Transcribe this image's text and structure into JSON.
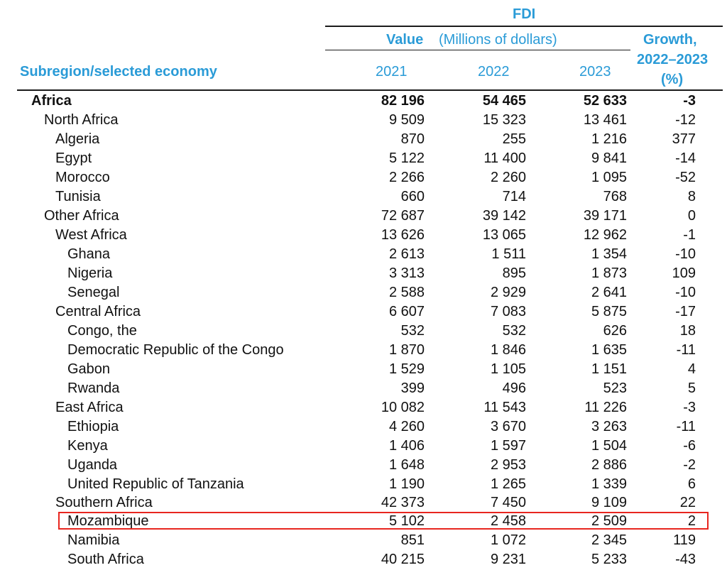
{
  "header": {
    "fdi": "FDI",
    "value": "Value",
    "units": "(Millions of dollars)",
    "growth_line1": "Growth,",
    "growth_line2": "2022–2023",
    "growth_line3": "(%)",
    "subregion": "Subregion/selected economy",
    "year_2021": "2021",
    "year_2022": "2022",
    "year_2023": "2023"
  },
  "rows": [
    {
      "name": "Africa",
      "v2021": "82 196",
      "v2022": "54 465",
      "v2023": "52 633",
      "growth": "-3"
    },
    {
      "name": "North Africa",
      "v2021": "9 509",
      "v2022": "15 323",
      "v2023": "13 461",
      "growth": "-12"
    },
    {
      "name": "Algeria",
      "v2021": "870",
      "v2022": "255",
      "v2023": "1 216",
      "growth": "377"
    },
    {
      "name": "Egypt",
      "v2021": "5 122",
      "v2022": "11 400",
      "v2023": "9 841",
      "growth": "-14"
    },
    {
      "name": "Morocco",
      "v2021": "2 266",
      "v2022": "2 260",
      "v2023": "1 095",
      "growth": "-52"
    },
    {
      "name": "Tunisia",
      "v2021": "660",
      "v2022": "714",
      "v2023": "768",
      "growth": "8"
    },
    {
      "name": "Other Africa",
      "v2021": "72 687",
      "v2022": "39 142",
      "v2023": "39 171",
      "growth": "0"
    },
    {
      "name": "West Africa",
      "v2021": "13 626",
      "v2022": "13 065",
      "v2023": "12 962",
      "growth": "-1"
    },
    {
      "name": "Ghana",
      "v2021": "2 613",
      "v2022": "1 511",
      "v2023": "1 354",
      "growth": "-10"
    },
    {
      "name": "Nigeria",
      "v2021": "3 313",
      "v2022": "895",
      "v2023": "1 873",
      "growth": "109"
    },
    {
      "name": "Senegal",
      "v2021": "2 588",
      "v2022": "2 929",
      "v2023": "2 641",
      "growth": "-10"
    },
    {
      "name": "Central Africa",
      "v2021": "6 607",
      "v2022": "7 083",
      "v2023": "5 875",
      "growth": "-17"
    },
    {
      "name": "Congo, the",
      "v2021": "532",
      "v2022": "532",
      "v2023": "626",
      "growth": "18"
    },
    {
      "name": "Democratic Republic of the Congo",
      "v2021": "1 870",
      "v2022": "1 846",
      "v2023": "1 635",
      "growth": "-11"
    },
    {
      "name": "Gabon",
      "v2021": "1 529",
      "v2022": "1 105",
      "v2023": "1 151",
      "growth": "4"
    },
    {
      "name": "Rwanda",
      "v2021": "399",
      "v2022": "496",
      "v2023": "523",
      "growth": "5"
    },
    {
      "name": "East Africa",
      "v2021": "10 082",
      "v2022": "11 543",
      "v2023": "11 226",
      "growth": "-3"
    },
    {
      "name": "Ethiopia",
      "v2021": "4 260",
      "v2022": "3 670",
      "v2023": "3 263",
      "growth": "-11"
    },
    {
      "name": "Kenya",
      "v2021": "1 406",
      "v2022": "1 597",
      "v2023": "1 504",
      "growth": "-6"
    },
    {
      "name": "Uganda",
      "v2021": "1 648",
      "v2022": "2 953",
      "v2023": "2 886",
      "growth": "-2"
    },
    {
      "name": "United Republic of Tanzania",
      "v2021": "1 190",
      "v2022": "1 265",
      "v2023": "1 339",
      "growth": "6"
    },
    {
      "name": "Southern Africa",
      "v2021": "42 373",
      "v2022": "7 450",
      "v2023": "9 109",
      "growth": "22"
    },
    {
      "name": "Mozambique",
      "v2021": "5 102",
      "v2022": "2 458",
      "v2023": "2 509",
      "growth": "2"
    },
    {
      "name": "Namibia",
      "v2021": "851",
      "v2022": "1 072",
      "v2023": "2 345",
      "growth": "119"
    },
    {
      "name": "South Africa",
      "v2021": "40 215",
      "v2022": "9 231",
      "v2023": "5 233",
      "growth": "-43"
    }
  ],
  "colors": {
    "header_blue": "#2a9bd7",
    "highlight_red": "#e8261f",
    "text": "#111111"
  }
}
